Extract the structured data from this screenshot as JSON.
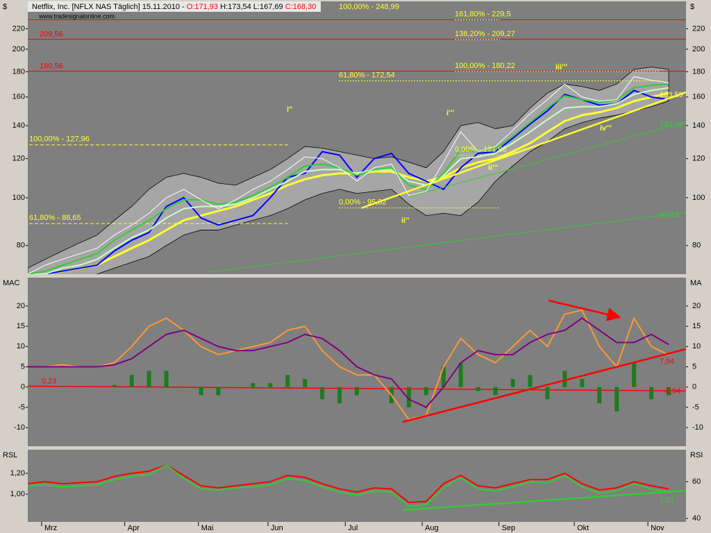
{
  "header": {
    "title": "Netflix, Inc. [NFLX NAS  Täglich] 15.11.2010 -",
    "open": "O:171,93",
    "hl": "H:173,54 L:167,69",
    "close": "C:168,30",
    "source": "www.tradesignalonline.com"
  },
  "chart_data": [
    {
      "type": "line",
      "ylabel": "$",
      "y2label": "$",
      "log": true,
      "ylim": [
        70,
        250
      ],
      "yticks": [
        80,
        100,
        120,
        140,
        160,
        180,
        200,
        220
      ],
      "xlim": [
        0,
        38
      ],
      "band": {
        "color": "#a6a6a6",
        "upper": [
          72,
          75,
          78,
          81,
          84,
          90,
          96,
          104,
          110,
          112,
          110,
          107,
          106,
          110,
          114,
          120,
          127,
          126,
          124,
          122,
          120,
          121,
          118,
          115,
          124,
          140,
          142,
          138,
          140,
          152,
          163,
          170,
          168,
          165,
          170,
          182,
          184,
          182
        ],
        "lower": [
          66,
          67,
          68,
          69,
          70,
          72,
          74,
          76,
          80,
          84,
          86,
          86,
          88,
          90,
          92,
          95,
          99,
          102,
          104,
          102,
          103,
          104,
          97,
          92,
          93,
          92,
          98,
          108,
          116,
          124,
          130,
          138,
          142,
          145,
          147,
          150,
          153,
          157
        ]
      },
      "series": [
        {
          "color": "#ffff33",
          "width": 3,
          "values": [
            69,
            70,
            71,
            72,
            73,
            76,
            79,
            82,
            86,
            90,
            92,
            94,
            96,
            99,
            102,
            106,
            109,
            111,
            112,
            112,
            113,
            113,
            110,
            108,
            110,
            115,
            118,
            120,
            124,
            129,
            136,
            143,
            147,
            149,
            152,
            157,
            160,
            163
          ]
        },
        {
          "color": "#0000ff",
          "width": 2,
          "values": [
            70,
            70,
            71,
            72,
            73,
            78,
            82,
            85,
            96,
            100,
            91,
            88,
            90,
            92,
            100,
            110,
            112,
            124,
            122,
            110,
            120,
            123,
            112,
            108,
            104,
            115,
            123,
            124,
            132,
            141,
            150,
            162,
            158,
            154,
            155,
            165,
            160,
            158
          ]
        },
        {
          "color": "#c8ffc8",
          "width": 2,
          "values": [
            70,
            70,
            72,
            73,
            75,
            79,
            83,
            86,
            91,
            95,
            96,
            96,
            97,
            100,
            104,
            108,
            113,
            114,
            114,
            112,
            114,
            114,
            108,
            106,
            111,
            120,
            121,
            123,
            129,
            136,
            144,
            152,
            153,
            153,
            155,
            162,
            165,
            167
          ]
        },
        {
          "color": "#33cc33",
          "width": 2,
          "values": [
            70,
            71,
            73,
            75,
            77,
            82,
            86,
            90,
            95,
            99,
            99,
            97,
            98,
            101,
            105,
            110,
            116,
            117,
            115,
            111,
            114,
            115,
            106,
            104,
            112,
            125,
            124,
            126,
            133,
            142,
            152,
            161,
            158,
            156,
            158,
            167,
            169,
            170
          ]
        },
        {
          "color": "#ffffff",
          "width": 1,
          "values": [
            70,
            73,
            75,
            77,
            79,
            84,
            88,
            93,
            100,
            104,
            99,
            95,
            99,
            104,
            108,
            114,
            121,
            120,
            115,
            108,
            115,
            117,
            101,
            103,
            118,
            136,
            124,
            127,
            137,
            148,
            158,
            170,
            160,
            157,
            158,
            176,
            173,
            171
          ]
        }
      ],
      "levels": [
        {
          "value": 229.5,
          "color": "#ff0000"
        },
        {
          "label": "209,56",
          "value": 209.56,
          "color": "#ff0000"
        },
        {
          "label": "180,56",
          "value": 180.56,
          "color": "#ff0000"
        }
      ],
      "fib": [
        {
          "label": "100,00% - 248,99",
          "value": 248.99
        },
        {
          "label": "161,80% - 229,5",
          "value": 229.5
        },
        {
          "label": "138,20% - 209,27",
          "value": 209.27
        },
        {
          "label": "100,00% - 180,22",
          "value": 180.22
        },
        {
          "label": "61,80% - 172,54",
          "value": 172.54
        },
        {
          "label": "100,00% - 127,96",
          "value": 127.96
        },
        {
          "label": "61,80% - 88,65",
          "value": 88.65
        },
        {
          "label": "0,00% - 95,32",
          "value": 95.32
        },
        {
          "label": "0,00% - 121,88",
          "value": 121.88
        }
      ],
      "waves": [
        "i''",
        "ii''",
        "i'''",
        "ii'''",
        "iii'''",
        "iv'''"
      ],
      "trend_labels": [
        {
          "label": "163,59",
          "value": 163.59,
          "color": "#ffff33"
        },
        {
          "label": "142,28",
          "value": 142.28,
          "color": "#33cc33"
        },
        {
          "label": "93,43",
          "value": 93.43,
          "color": "#33cc33"
        }
      ]
    },
    {
      "type": "line",
      "ylabel": "MAC",
      "y2label": "MA",
      "ylim": [
        -14.6,
        27
      ],
      "yticks": [
        -10,
        -5,
        0,
        5,
        10,
        15,
        20
      ],
      "xlim": [
        0,
        38
      ],
      "series": [
        {
          "color": "#1f7a1f",
          "style": "histogram",
          "values": [
            0,
            0,
            0.3,
            0,
            0,
            0.5,
            3,
            4,
            4,
            0,
            -2,
            -2,
            0,
            1,
            1,
            3,
            2,
            -3,
            -4,
            -2,
            0,
            -4,
            -5,
            -2,
            5,
            6,
            -1,
            -2,
            2,
            3,
            -3,
            4,
            2,
            -4,
            -6,
            6,
            -3,
            -2
          ]
        },
        {
          "color": "#ff9933",
          "width": 2,
          "values": [
            5,
            5,
            5.5,
            5,
            5,
            6,
            10,
            15,
            17,
            14,
            10,
            8,
            9,
            10,
            11,
            14,
            15,
            9,
            5,
            3,
            3,
            -2,
            -8,
            -7,
            5,
            12,
            8,
            6,
            10,
            14,
            10,
            18,
            19,
            10,
            5,
            17,
            10,
            7.94
          ]
        },
        {
          "color": "#800080",
          "width": 2,
          "values": [
            5,
            5,
            5,
            5,
            5,
            5.5,
            7,
            10,
            13,
            14,
            12,
            10,
            9,
            9,
            10,
            11,
            13,
            12,
            9,
            5,
            3,
            2,
            -3,
            -5,
            0,
            6,
            9,
            8,
            8,
            11,
            13,
            14,
            17,
            14,
            11,
            11,
            13,
            10.5
          ]
        }
      ],
      "level_line": {
        "color": "#ff0000",
        "start": {
          "label": "0,23",
          "value": 0.23
        },
        "end": {
          "label": "-0,94",
          "value": -0.94
        }
      },
      "trend_labels": [
        {
          "label": "7,94",
          "value": 7.94,
          "color": "#ff0000"
        }
      ]
    },
    {
      "type": "line",
      "ylabel": "RSL",
      "y2label": "RSI",
      "ylim": [
        0.733,
        1.427
      ],
      "yticks": [
        {
          "value": 1.0,
          "label": "1,00"
        },
        {
          "value": 1.2,
          "label": "1,20"
        }
      ],
      "y2lim": [
        38.1,
        77.4
      ],
      "y2ticks": [
        40,
        60
      ],
      "xlim": [
        0,
        38
      ],
      "xticks": [
        {
          "value": 0.8,
          "label": "Mrz"
        },
        {
          "value": 5.6,
          "label": "Apr"
        },
        {
          "value": 9.85,
          "label": "Mai"
        },
        {
          "value": 13.87,
          "label": "Jun"
        },
        {
          "value": 18.33,
          "label": "Jul"
        },
        {
          "value": 22.77,
          "label": "Aug"
        },
        {
          "value": 27.2,
          "label": "Sep"
        },
        {
          "value": 31.55,
          "label": "Okt"
        },
        {
          "value": 35.8,
          "label": "Nov"
        }
      ],
      "series": [
        {
          "color": "#ff0000",
          "width": 2,
          "values": [
            1.1,
            1.12,
            1.1,
            1.11,
            1.12,
            1.17,
            1.2,
            1.22,
            1.28,
            1.18,
            1.08,
            1.06,
            1.08,
            1.1,
            1.12,
            1.18,
            1.16,
            1.1,
            1.05,
            1.02,
            1.06,
            1.05,
            0.92,
            0.93,
            1.1,
            1.18,
            1.08,
            1.06,
            1.1,
            1.14,
            1.14,
            1.2,
            1.1,
            1.04,
            1.06,
            1.12,
            1.08,
            1.05
          ]
        },
        {
          "color": "#33cc33",
          "width": 2,
          "values": [
            1.08,
            1.09,
            1.07,
            1.08,
            1.09,
            1.14,
            1.17,
            1.19,
            1.28,
            1.15,
            1.05,
            1.04,
            1.06,
            1.07,
            1.09,
            1.15,
            1.13,
            1.07,
            1.02,
            0.99,
            1.03,
            1.02,
            0.88,
            0.9,
            1.06,
            1.16,
            1.05,
            1.03,
            1.07,
            1.12,
            1.11,
            1.18,
            1.07,
            1.01,
            1.03,
            1.1,
            1.05,
            1.02
          ]
        }
      ],
      "trend_labels": [
        {
          "label": "1,01",
          "value": 1.01,
          "color": "#33cc33"
        }
      ]
    }
  ]
}
